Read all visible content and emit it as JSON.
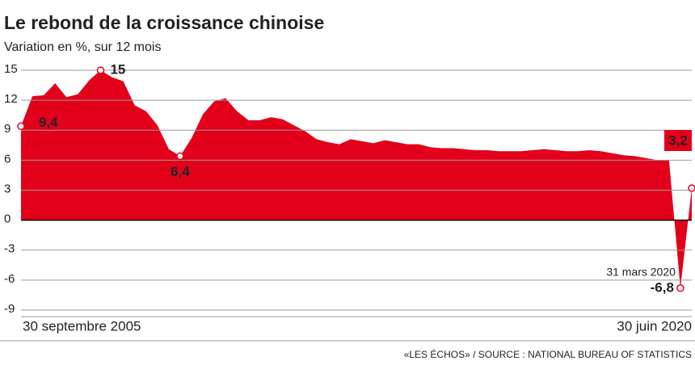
{
  "chart_data": {
    "type": "area",
    "title": "Le rebond de la croissance chinoise",
    "subtitle": "Variation en %, sur 12 mois",
    "source": "«LES ÉCHOS» / SOURCE : NATIONAL BUREAU OF STATISTICS",
    "annotation": "31 mars 2020",
    "categories": [
      "30 septembre 2005",
      null,
      null,
      null,
      null,
      null,
      null,
      null,
      null,
      null,
      null,
      null,
      null,
      null,
      null,
      null,
      null,
      null,
      null,
      null,
      null,
      null,
      null,
      null,
      null,
      null,
      null,
      null,
      null,
      null,
      null,
      null,
      null,
      null,
      null,
      null,
      null,
      null,
      null,
      null,
      null,
      null,
      null,
      null,
      null,
      null,
      null,
      null,
      null,
      null,
      null,
      null,
      null,
      null,
      null,
      null,
      null,
      null,
      null,
      "30 juin 2020"
    ],
    "values": [
      9.4,
      12.4,
      12.5,
      13.7,
      12.3,
      12.6,
      14.0,
      15,
      14.3,
      13.9,
      11.5,
      10.9,
      9.5,
      7.1,
      6.4,
      8.2,
      10.6,
      11.9,
      12.2,
      10.9,
      10.0,
      10.0,
      10.3,
      10.1,
      9.5,
      8.9,
      8.1,
      7.8,
      7.6,
      8.1,
      7.9,
      7.7,
      8.0,
      7.8,
      7.6,
      7.6,
      7.3,
      7.2,
      7.2,
      7.1,
      7.0,
      7.0,
      6.9,
      6.9,
      6.9,
      7.0,
      7.1,
      7.0,
      6.9,
      6.9,
      7.0,
      6.9,
      6.7,
      6.5,
      6.4,
      6.2,
      6.0,
      6.0,
      -6.8,
      3.2
    ],
    "value_labels": [
      "9,4",
      null,
      null,
      null,
      null,
      null,
      null,
      "15",
      null,
      null,
      null,
      null,
      null,
      null,
      "6,4",
      null,
      null,
      null,
      null,
      null,
      null,
      null,
      null,
      null,
      null,
      null,
      null,
      null,
      null,
      null,
      null,
      null,
      null,
      null,
      null,
      null,
      null,
      null,
      null,
      null,
      null,
      null,
      null,
      null,
      null,
      null,
      null,
      null,
      null,
      null,
      null,
      null,
      null,
      null,
      null,
      null,
      null,
      null,
      "-6,8",
      "3,2"
    ],
    "color": "#e2001a",
    "ylim": [
      -9,
      15
    ],
    "yticks": [
      15,
      12,
      9,
      6,
      3,
      0,
      -3,
      -6,
      -9
    ],
    "grid": true
  }
}
